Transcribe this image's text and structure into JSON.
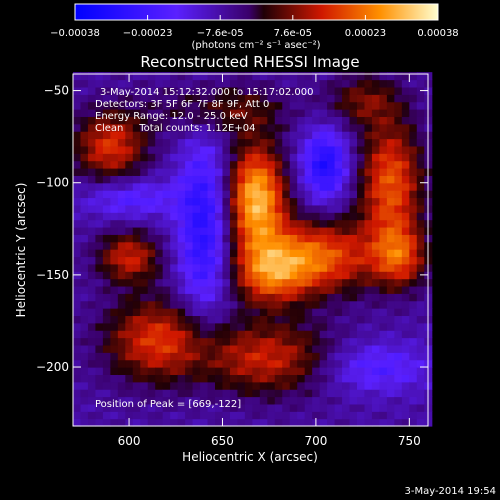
{
  "chart_data": {
    "type": "heatmap",
    "title": "Reconstructed RHESSI Image",
    "xlabel": "Heliocentric X (arcsec)",
    "ylabel": "Heliocentric Y (arcsec)",
    "xlim": [
      570,
      760
    ],
    "ylim": [
      -232,
      -41
    ],
    "xticks": [
      600,
      650,
      700,
      750
    ],
    "yticks": [
      -50,
      -100,
      -150,
      -200
    ],
    "colorbar": {
      "range": [
        -0.00038,
        0.00038
      ],
      "tick_labels": [
        "-0.00038",
        "-0.00023",
        "-7.6e-05",
        "7.6e-05",
        "0.00023",
        "0.00038"
      ],
      "unit_label": "(photons cm⁻² s⁻¹ asec⁻²)"
    },
    "annotations": [
      "3-May-2014 15:12:32.000 to 15:17:02.000",
      "Detectors: 3F 5F 6F 7F 8F 9F, Att 0",
      "Energy Range: 12.0 - 25.0 keV",
      "Clean     Total counts: 1.12E+04"
    ],
    "peak_label": "Position of Peak = [669,-122]",
    "peak": [
      669,
      -122
    ],
    "grid_step": 4,
    "features": [
      {
        "x": 668,
        "y": -108,
        "sx": 11,
        "sy": 20,
        "a": 1.0
      },
      {
        "x": 700,
        "y": -140,
        "sx": 22,
        "sy": 14,
        "a": 0.75
      },
      {
        "x": 675,
        "y": -150,
        "sx": 14,
        "sy": 12,
        "a": 0.55
      },
      {
        "x": 740,
        "y": -100,
        "sx": 12,
        "sy": 24,
        "a": 0.7
      },
      {
        "x": 745,
        "y": -140,
        "sx": 10,
        "sy": 12,
        "a": 0.55
      },
      {
        "x": 590,
        "y": -80,
        "sx": 14,
        "sy": 14,
        "a": 0.6
      },
      {
        "x": 600,
        "y": -140,
        "sx": 12,
        "sy": 10,
        "a": 0.55
      },
      {
        "x": 615,
        "y": -185,
        "sx": 20,
        "sy": 16,
        "a": 0.6
      },
      {
        "x": 675,
        "y": -195,
        "sx": 26,
        "sy": 14,
        "a": 0.55
      },
      {
        "x": 650,
        "y": -60,
        "sx": 24,
        "sy": 10,
        "a": 0.35
      },
      {
        "x": 725,
        "y": -55,
        "sx": 14,
        "sy": 10,
        "a": 0.35
      },
      {
        "x": 640,
        "y": -125,
        "sx": 10,
        "sy": 36,
        "a": -0.55
      },
      {
        "x": 705,
        "y": -90,
        "sx": 9,
        "sy": 14,
        "a": -0.6
      },
      {
        "x": 600,
        "y": -108,
        "sx": 18,
        "sy": 8,
        "a": -0.35
      },
      {
        "x": 730,
        "y": -200,
        "sx": 22,
        "sy": 10,
        "a": -0.35
      }
    ]
  },
  "footer": {
    "timestamp": "3-May-2014 19:54"
  }
}
